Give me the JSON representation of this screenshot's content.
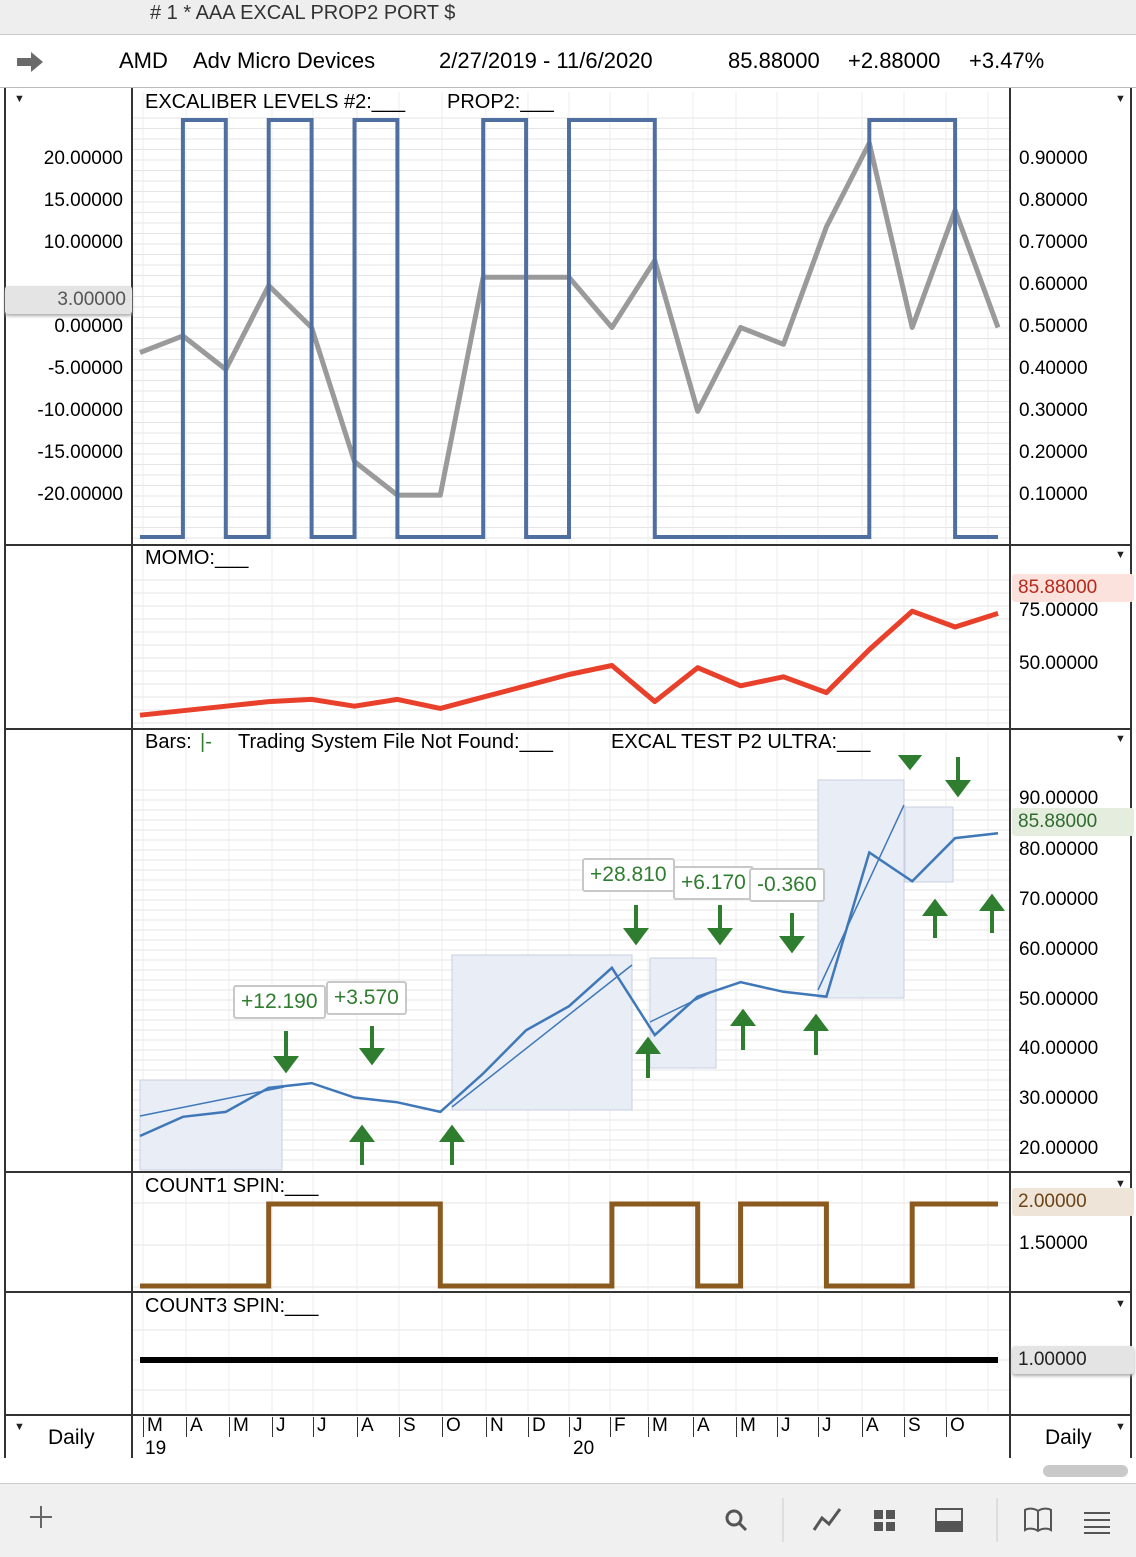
{
  "window": {
    "title": "# 1 * AAA EXCAL PROP2 PORT $"
  },
  "header": {
    "symbol": "AMD",
    "name": "Adv Micro Devices",
    "range": "2/27/2019 - 11/6/2020",
    "last": "85.88000",
    "change": "+2.88000",
    "pct": "+3.47%"
  },
  "panel1": {
    "title1": "EXCALIBER LEVELS #2:___",
    "title2": "PROP2:___",
    "left_ticks": [
      "20.00000",
      "15.00000",
      "10.00000",
      "0.00000",
      "-5.00000",
      "-10.00000",
      "-15.00000",
      "-20.00000"
    ],
    "right_ticks": [
      "0.90000",
      "0.80000",
      "0.70000",
      "0.60000",
      "0.50000",
      "0.40000",
      "0.30000",
      "0.20000",
      "0.10000"
    ],
    "left_highlight": "3.00000"
  },
  "panel2": {
    "title": "MOMO:___",
    "right_ticks": [
      "75.00000",
      "50.00000"
    ],
    "highlight": "85.88000"
  },
  "panel3": {
    "title_bars": "Bars:",
    "title_sys": "Trading System File Not Found:___",
    "title_ultra": "EXCAL TEST P2 ULTRA:___",
    "right_ticks": [
      "90.00000",
      "80.00000",
      "70.00000",
      "60.00000",
      "50.00000",
      "40.00000",
      "30.00000",
      "20.00000"
    ],
    "highlight": "85.88000",
    "trade_labels": [
      "+12.190",
      "+3.570",
      "+28.810",
      "+6.170",
      "-0.360"
    ]
  },
  "panel4": {
    "title": "COUNT1 SPIN:___",
    "right_ticks": [
      "1.50000"
    ],
    "highlight": "2.00000"
  },
  "panel5": {
    "title": "COUNT3 SPIN:___",
    "highlight": "1.00000"
  },
  "xaxis": {
    "months": [
      "M",
      "A",
      "M",
      "J",
      "J",
      "A",
      "S",
      "O",
      "N",
      "D",
      "J",
      "F",
      "M",
      "A",
      "M",
      "J",
      "J",
      "A",
      "S",
      "O"
    ],
    "years": [
      "19",
      "20"
    ]
  },
  "footer": {
    "left": "Daily",
    "right": "Daily"
  },
  "colors": {
    "prop2": "#4f6fa0",
    "excal": "#9a9a9a",
    "momo": "#e8402a",
    "count1": "#8b5a1e",
    "count3": "#000000",
    "green": "#2f7d2f",
    "blue_line": "#3f78b8"
  },
  "chart_data": [
    {
      "type": "line",
      "title": "EXCALIBER LEVELS #2 / PROP2",
      "x": [
        "2019-03",
        "2019-04",
        "2019-05",
        "2019-06",
        "2019-07",
        "2019-08",
        "2019-09",
        "2019-10",
        "2019-11",
        "2019-12",
        "2020-01",
        "2020-02",
        "2020-03",
        "2020-04",
        "2020-05",
        "2020-06",
        "2020-07",
        "2020-08",
        "2020-09",
        "2020-10",
        "2020-11"
      ],
      "series": [
        {
          "name": "EXCALIBER LEVELS #2",
          "values": [
            -3,
            -1,
            -5,
            5,
            0,
            -16,
            -20,
            -20,
            6,
            6,
            6,
            0,
            8,
            -10,
            0,
            -2,
            12,
            22,
            0,
            14,
            0
          ]
        },
        {
          "name": "PROP2",
          "values": [
            0,
            1,
            0,
            1,
            0,
            1,
            0,
            0,
            1,
            0,
            1,
            1,
            0,
            0,
            0,
            0,
            0,
            1,
            1,
            0,
            0
          ]
        }
      ],
      "ylim_left": [
        -25,
        25
      ],
      "ylim_right": [
        0,
        1
      ]
    },
    {
      "type": "line",
      "title": "MOMO",
      "x": [
        "2019-03",
        "2019-04",
        "2019-05",
        "2019-06",
        "2019-07",
        "2019-08",
        "2019-09",
        "2019-10",
        "2019-11",
        "2019-12",
        "2020-01",
        "2020-02",
        "2020-03",
        "2020-04",
        "2020-05",
        "2020-06",
        "2020-07",
        "2020-08",
        "2020-09",
        "2020-10",
        "2020-11"
      ],
      "series": [
        {
          "name": "MOMO",
          "values": [
            23,
            25,
            27,
            29,
            30,
            27,
            30,
            26,
            31,
            36,
            41,
            45,
            29,
            44,
            36,
            40,
            33,
            52,
            69,
            62,
            68
          ]
        }
      ],
      "ylim": [
        20,
        85
      ]
    },
    {
      "type": "line",
      "title": "AMD Bars / EXCAL TEST P2 ULTRA",
      "x": [
        "2019-03",
        "2019-04",
        "2019-05",
        "2019-06",
        "2019-07",
        "2019-08",
        "2019-09",
        "2019-10",
        "2019-11",
        "2019-12",
        "2020-01",
        "2020-02",
        "2020-03",
        "2020-04",
        "2020-05",
        "2020-06",
        "2020-07",
        "2020-08",
        "2020-09",
        "2020-10",
        "2020-11"
      ],
      "series": [
        {
          "name": "AMD",
          "values": [
            23,
            27,
            28,
            33,
            34,
            31,
            30,
            28,
            36,
            45,
            50,
            58,
            44,
            52,
            55,
            53,
            52,
            82,
            76,
            85,
            86
          ]
        }
      ],
      "ylim": [
        18,
        95
      ]
    },
    {
      "type": "line",
      "title": "COUNT1 SPIN",
      "x": [
        "2019-03",
        "2019-04",
        "2019-05",
        "2019-06",
        "2019-07",
        "2019-08",
        "2019-09",
        "2019-10",
        "2019-11",
        "2019-12",
        "2020-01",
        "2020-02",
        "2020-03",
        "2020-04",
        "2020-05",
        "2020-06",
        "2020-07",
        "2020-08",
        "2020-09",
        "2020-10",
        "2020-11"
      ],
      "series": [
        {
          "name": "COUNT1 SPIN",
          "values": [
            1,
            1,
            1,
            2,
            2,
            2,
            2,
            1,
            1,
            1,
            1,
            2,
            2,
            1,
            2,
            2,
            1,
            1,
            2,
            2,
            2
          ]
        }
      ],
      "ylim": [
        1,
        2
      ]
    },
    {
      "type": "line",
      "title": "COUNT3 SPIN",
      "x": [
        "2019-03",
        "2020-11"
      ],
      "series": [
        {
          "name": "COUNT3 SPIN",
          "values": [
            1,
            1
          ]
        }
      ]
    }
  ]
}
